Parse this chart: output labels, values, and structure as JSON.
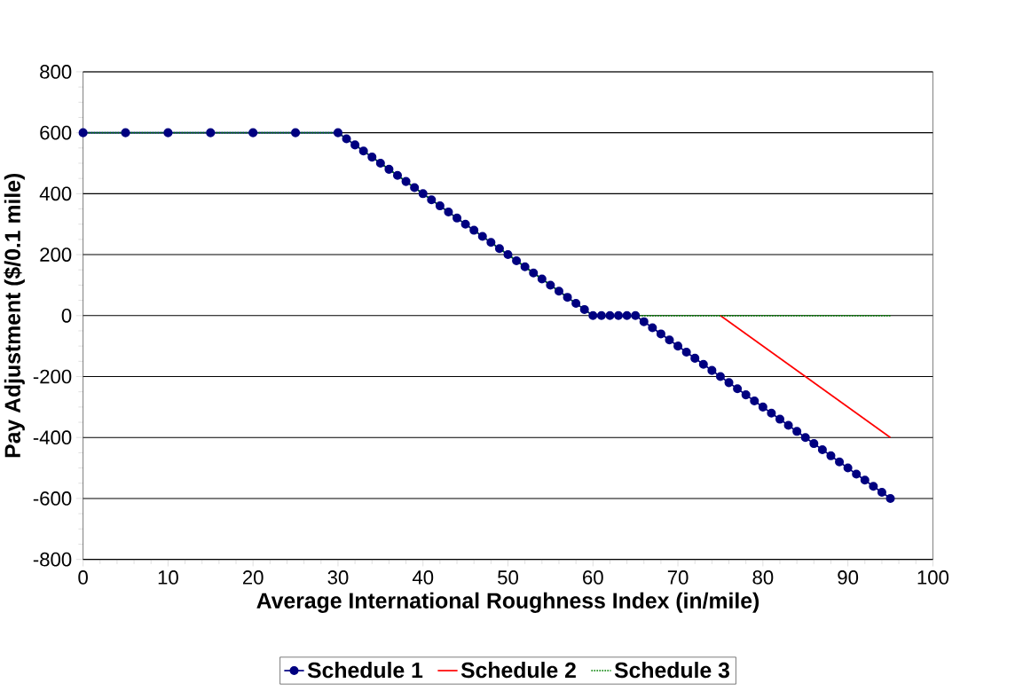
{
  "chart_data": {
    "type": "line",
    "xlabel": "Average International Roughness Index (in/mile)",
    "ylabel": "Pay Adjustment ($/0.1 mile)",
    "xlim": [
      0,
      100
    ],
    "xticks": [
      0,
      10,
      20,
      30,
      40,
      50,
      60,
      70,
      80,
      90,
      100
    ],
    "ylim": [
      -800,
      800
    ],
    "yticks": [
      -800,
      -600,
      -400,
      -200,
      0,
      200,
      400,
      600,
      800
    ],
    "grid": "y",
    "legend": "bottom",
    "series": [
      {
        "name": "Schedule 1",
        "color": "#000080",
        "marker": "circle",
        "line_style": "solid",
        "x": [
          0,
          5,
          10,
          15,
          20,
          25,
          30,
          31,
          32,
          33,
          34,
          35,
          36,
          37,
          38,
          39,
          40,
          41,
          42,
          43,
          44,
          45,
          46,
          47,
          48,
          49,
          50,
          51,
          52,
          53,
          54,
          55,
          56,
          57,
          58,
          59,
          60,
          61,
          62,
          63,
          64,
          65,
          66,
          67,
          68,
          69,
          70,
          71,
          72,
          73,
          74,
          75,
          76,
          77,
          78,
          79,
          80,
          81,
          82,
          83,
          84,
          85,
          86,
          87,
          88,
          89,
          90,
          91,
          92,
          93,
          94,
          95
        ],
        "values": [
          600,
          600,
          600,
          600,
          600,
          600,
          600,
          580,
          560,
          540,
          520,
          500,
          480,
          460,
          440,
          420,
          400,
          380,
          360,
          340,
          320,
          300,
          280,
          260,
          240,
          220,
          200,
          180,
          160,
          140,
          120,
          100,
          80,
          60,
          40,
          20,
          0,
          0,
          0,
          0,
          0,
          0,
          -20,
          -40,
          -60,
          -80,
          -100,
          -120,
          -140,
          -160,
          -180,
          -200,
          -220,
          -240,
          -260,
          -280,
          -300,
          -320,
          -340,
          -360,
          -380,
          -400,
          -420,
          -440,
          -460,
          -480,
          -500,
          -520,
          -540,
          -560,
          -580,
          -600
        ]
      },
      {
        "name": "Schedule 2",
        "color": "#ff0000",
        "marker": "none",
        "line_style": "solid",
        "x": [
          75,
          95
        ],
        "values": [
          0,
          -400
        ]
      },
      {
        "name": "Schedule 3",
        "color": "#008000",
        "marker": "none",
        "line_style": "dotted",
        "x": [
          0,
          30,
          60,
          95
        ],
        "values": [
          600,
          600,
          0,
          0
        ]
      }
    ]
  }
}
